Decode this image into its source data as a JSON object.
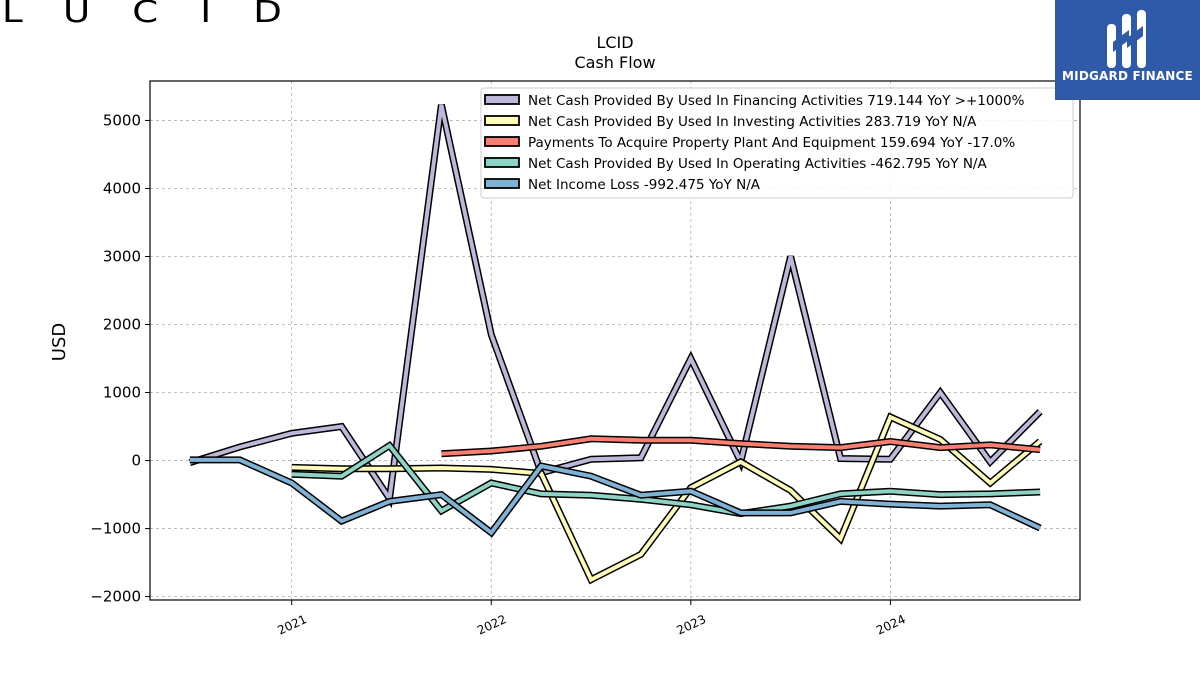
{
  "logos": {
    "left_brand": "LUCID",
    "right_brand": "MIDGARD FINANCE"
  },
  "chart_data": {
    "type": "line",
    "title": "LCID",
    "subtitle": "Cash Flow",
    "ylabel": "USD",
    "xlabel": "",
    "ylim": [
      -2050,
      5580
    ],
    "xlim": [
      2020.29,
      2024.95
    ],
    "yticks": [
      -2000,
      -1000,
      0,
      1000,
      2000,
      3000,
      4000,
      5000
    ],
    "yticklabels": [
      "−2000",
      "−1000",
      "0",
      "1000",
      "2000",
      "3000",
      "4000",
      "5000"
    ],
    "xticks": [
      2021,
      2022,
      2023,
      2024
    ],
    "xticklabels": [
      "2021",
      "2022",
      "2023",
      "2024"
    ],
    "grid": true,
    "legend_position": "top-right",
    "x": [
      2020.49,
      2020.74,
      2021.0,
      2021.25,
      2021.49,
      2021.75,
      2022.0,
      2022.25,
      2022.5,
      2022.75,
      2023.0,
      2023.25,
      2023.5,
      2023.75,
      2024.0,
      2024.25,
      2024.5,
      2024.75
    ],
    "series": [
      {
        "name": "Net Cash Provided By Used In Financing Activities",
        "legend_label": "Net Cash Provided By Used In Financing Activities  719.144 YoY >+1000%",
        "color": "#bcb8d9",
        "values": [
          -30,
          200,
          400,
          500,
          -560,
          5230,
          1850,
          -180,
          20,
          40,
          1500,
          -20,
          3000,
          30,
          20,
          1000,
          -20,
          719.144
        ]
      },
      {
        "name": "Net Cash Provided By Used In Investing Activities",
        "legend_label": "Net Cash Provided By Used In Investing Activities  283.719 YoY N/A",
        "color": "#fdfcb8",
        "values": [
          null,
          null,
          -100,
          -120,
          -120,
          -110,
          -130,
          -190,
          -1750,
          -1380,
          -400,
          -20,
          -440,
          -1150,
          640,
          310,
          -330,
          283.719
        ]
      },
      {
        "name": "Payments To Acquire Property Plant And Equipment",
        "legend_label": "Payments To Acquire Property Plant And Equipment  159.694 YoY -17.0%",
        "color": "#f97f70",
        "values": [
          null,
          null,
          null,
          null,
          null,
          100,
          140,
          210,
          320,
          300,
          300,
          250,
          210,
          190,
          280,
          190,
          230,
          159.694
        ]
      },
      {
        "name": "Net Cash Provided By Used In Operating Activities",
        "legend_label": "Net Cash Provided By Used In Operating Activities  -462.795 YoY N/A",
        "color": "#8dd4c6",
        "values": [
          null,
          null,
          -200,
          -230,
          220,
          -740,
          -330,
          -490,
          -510,
          -570,
          -650,
          -780,
          -670,
          -490,
          -450,
          -500,
          -490,
          -462.795
        ]
      },
      {
        "name": "Net Income Loss",
        "legend_label": "Net Income Loss  -992.475 YoY N/A",
        "color": "#80b2d5",
        "values": [
          10,
          10,
          -330,
          -890,
          -600,
          -500,
          -1060,
          -80,
          -230,
          -510,
          -450,
          -770,
          -770,
          -600,
          -640,
          -670,
          -650,
          -992.475
        ]
      }
    ]
  }
}
